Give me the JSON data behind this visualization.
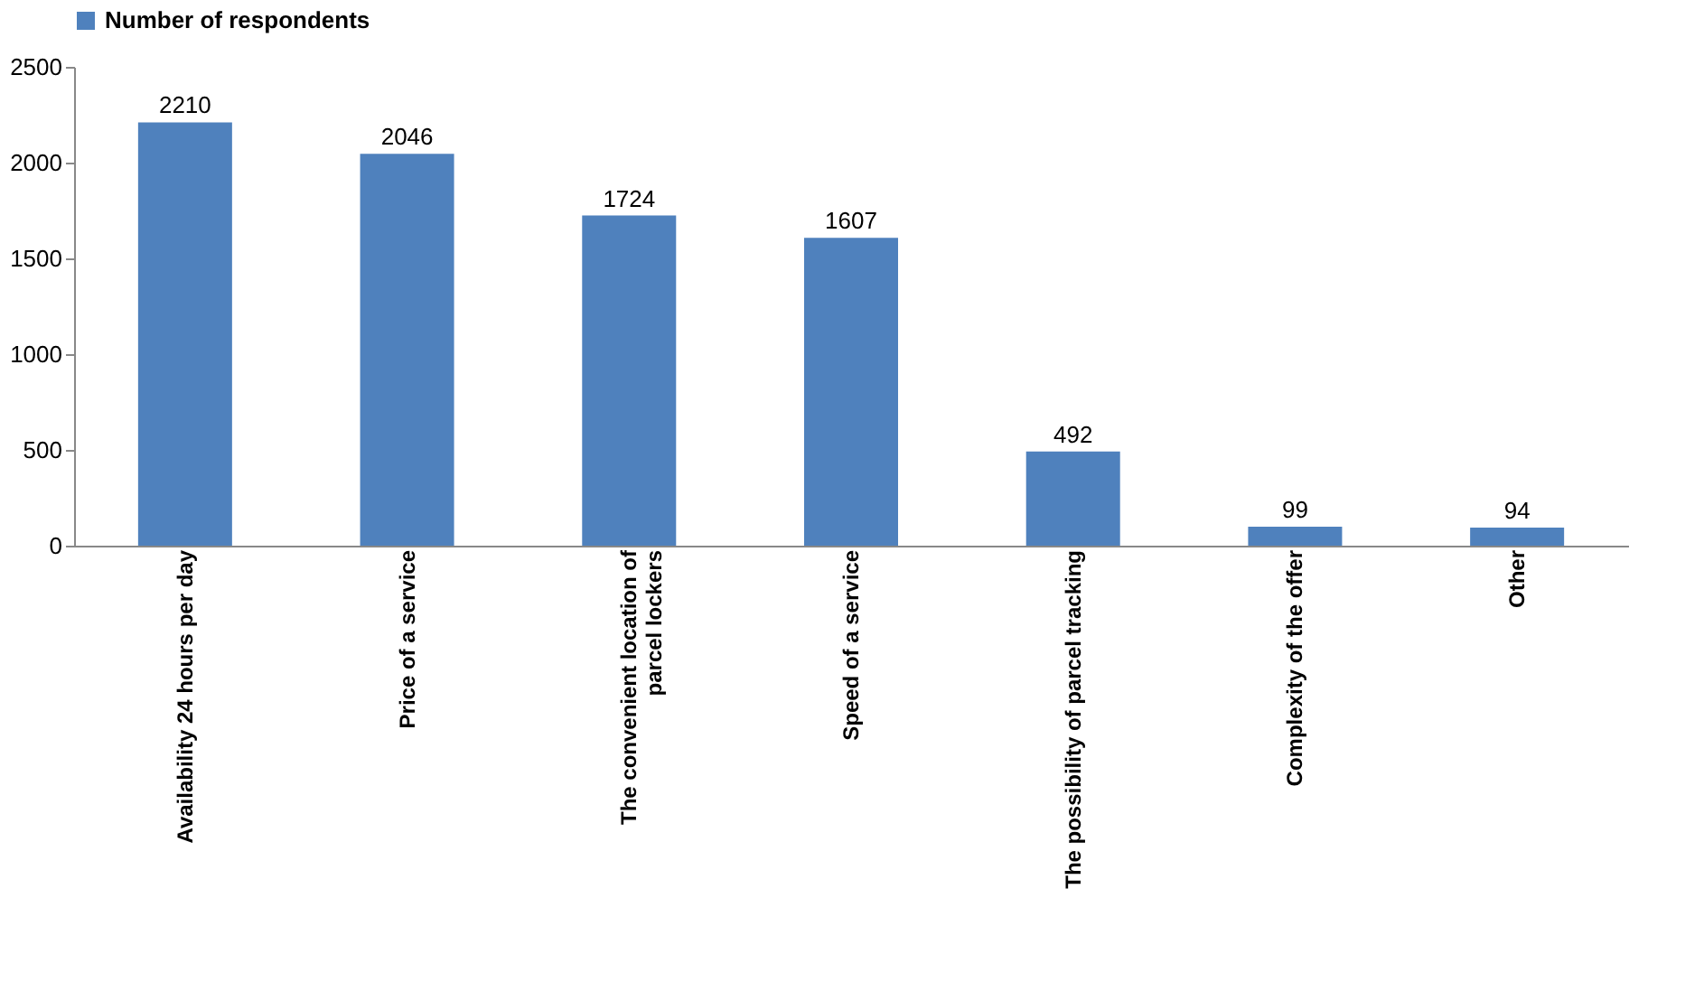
{
  "chart_data": {
    "type": "bar",
    "categories": [
      "Availability 24 hours per day",
      "Price of a service",
      "The convenient location of parcel lockers",
      "Speed of a service",
      "The possibility of parcel tracking",
      "Complexity of the offer",
      "Other"
    ],
    "series": [
      {
        "name": "Number of respondents",
        "color": "#4f81bd",
        "values": [
          2210,
          2046,
          1724,
          1607,
          492,
          99,
          94
        ]
      }
    ],
    "ylim": [
      0,
      2500
    ],
    "yticks": [
      0,
      500,
      1000,
      1500,
      2000,
      2500
    ],
    "data_labels": true,
    "legend": "top",
    "grid": false
  }
}
